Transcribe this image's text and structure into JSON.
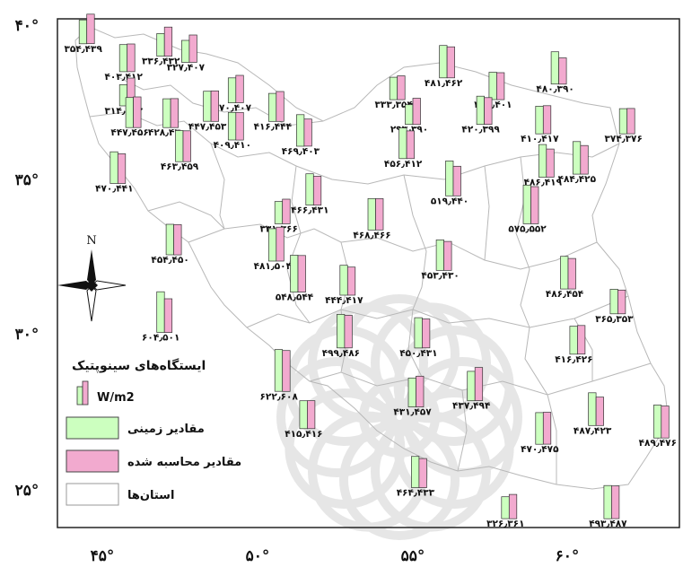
{
  "map": {
    "axes": {
      "x_ticks": [
        "۴۵°",
        "۵۰°",
        "۵۵°",
        "۶۰°"
      ],
      "y_ticks": [
        "۴۰°",
        "۳۵°",
        "۳۰°",
        "۲۵°"
      ]
    },
    "north_label": "N",
    "legend": {
      "title": "ایستگاه‌های سینوپتیک",
      "unit": "W/m2",
      "ground": "مقادیر زمینی",
      "computed": "مقادیر محاسبه شده",
      "provinces": "استان‌ها"
    },
    "colors": {
      "ground_bar": "#ccffbf",
      "computed_bar": "#f2aacf",
      "province_border": "#b8b8b8",
      "watermark": "#cfcfcf"
    },
    "stations": [
      {
        "lon": 44.5,
        "lat": 39.4,
        "label": "۳۵۴٫۴۳۹",
        "ground": 354,
        "computed": 439
      },
      {
        "lon": 45.8,
        "lat": 38.5,
        "label": "۴۰۳٫۴۱۲",
        "ground": 403,
        "computed": 412
      },
      {
        "lon": 47.0,
        "lat": 39.0,
        "label": "۳۳۶٫۴۳۲",
        "ground": 336,
        "computed": 432
      },
      {
        "lon": 47.8,
        "lat": 38.8,
        "label": "۳۲۷٫۴۰۷",
        "ground": 327,
        "computed": 407
      },
      {
        "lon": 45.8,
        "lat": 37.4,
        "label": "۳۱۴٫۴۱۳",
        "ground": 314,
        "computed": 413
      },
      {
        "lon": 49.3,
        "lat": 37.5,
        "label": "۳۷۰٫۴۰۷",
        "ground": 370,
        "computed": 407
      },
      {
        "lon": 47.2,
        "lat": 36.7,
        "label": "۴۲۸٫۴۳۰",
        "ground": 428,
        "computed": 430
      },
      {
        "lon": 48.5,
        "lat": 36.9,
        "label": "۴۴۷٫۴۵۳",
        "ground": 447,
        "computed": 453
      },
      {
        "lon": 46.0,
        "lat": 36.7,
        "label": "۴۴۷٫۴۵۶",
        "ground": 447,
        "computed": 456
      },
      {
        "lon": 49.3,
        "lat": 36.3,
        "label": "۴۰۹٫۴۱۰",
        "ground": 409,
        "computed": 410
      },
      {
        "lon": 50.6,
        "lat": 36.9,
        "label": "۴۱۶٫۴۴۴",
        "ground": 416,
        "computed": 444
      },
      {
        "lon": 47.6,
        "lat": 35.6,
        "label": "۴۶۳٫۴۵۹",
        "ground": 463,
        "computed": 459
      },
      {
        "lon": 45.5,
        "lat": 34.9,
        "label": "۴۷۰٫۴۴۱",
        "ground": 470,
        "computed": 441
      },
      {
        "lon": 51.5,
        "lat": 36.1,
        "label": "۴۶۹٫۴۰۳",
        "ground": 469,
        "computed": 403
      },
      {
        "lon": 54.5,
        "lat": 37.6,
        "label": "۳۳۳٫۳۵۴",
        "ground": 333,
        "computed": 354
      },
      {
        "lon": 56.1,
        "lat": 38.3,
        "label": "۴۸۱٫۴۶۲",
        "ground": 481,
        "computed": 462
      },
      {
        "lon": 57.7,
        "lat": 37.6,
        "label": "۴۰۷٫۴۰۱",
        "ground": 407,
        "computed": 401
      },
      {
        "lon": 59.7,
        "lat": 38.1,
        "label": "۴۸۰٫۳۹۰",
        "ground": 480,
        "computed": 390
      },
      {
        "lon": 55.0,
        "lat": 36.8,
        "label": "۲۹۳٫۳۹۰",
        "ground": 293,
        "computed": 390
      },
      {
        "lon": 57.3,
        "lat": 36.8,
        "label": "۴۲۰٫۳۹۹",
        "ground": 420,
        "computed": 399
      },
      {
        "lon": 59.2,
        "lat": 36.5,
        "label": "۴۱۰٫۴۱۷",
        "ground": 410,
        "computed": 417
      },
      {
        "lon": 61.9,
        "lat": 36.5,
        "label": "۳۷۴٫۳۷۶",
        "ground": 374,
        "computed": 376
      },
      {
        "lon": 54.8,
        "lat": 35.7,
        "label": "۴۵۶٫۴۱۲",
        "ground": 456,
        "computed": 412
      },
      {
        "lon": 59.3,
        "lat": 35.1,
        "label": "۴۸۶٫۴۱۹",
        "ground": 486,
        "computed": 419
      },
      {
        "lon": 60.4,
        "lat": 35.2,
        "label": "۴۸۴٫۴۲۵",
        "ground": 484,
        "computed": 425
      },
      {
        "lon": 56.3,
        "lat": 34.5,
        "label": "۵۱۹٫۴۴۰",
        "ground": 519,
        "computed": 440
      },
      {
        "lon": 51.8,
        "lat": 34.2,
        "label": "۴۶۶٫۴۳۱",
        "ground": 466,
        "computed": 431
      },
      {
        "lon": 53.8,
        "lat": 33.4,
        "label": "۴۶۸٫۴۶۶",
        "ground": 468,
        "computed": 466
      },
      {
        "lon": 50.8,
        "lat": 33.6,
        "label": "۳۳۱٫۳۶۶",
        "ground": 331,
        "computed": 366
      },
      {
        "lon": 58.8,
        "lat": 33.6,
        "label": "۵۷۵٫۵۵۲",
        "ground": 575,
        "computed": 552
      },
      {
        "lon": 47.3,
        "lat": 32.6,
        "label": "۴۵۴٫۴۵۰",
        "ground": 454,
        "computed": 450
      },
      {
        "lon": 50.6,
        "lat": 32.4,
        "label": "۴۸۱٫۵۰۴",
        "ground": 481,
        "computed": 504
      },
      {
        "lon": 51.3,
        "lat": 31.4,
        "label": "۵۴۸٫۵۴۴",
        "ground": 548,
        "computed": 544
      },
      {
        "lon": 52.9,
        "lat": 31.3,
        "label": "۴۴۴٫۴۱۷",
        "ground": 444,
        "computed": 417
      },
      {
        "lon": 56.0,
        "lat": 32.1,
        "label": "۴۵۳٫۴۳۰",
        "ground": 453,
        "computed": 430
      },
      {
        "lon": 60.0,
        "lat": 31.5,
        "label": "۴۸۶٫۴۵۴",
        "ground": 486,
        "computed": 454
      },
      {
        "lon": 61.6,
        "lat": 30.7,
        "label": "۳۶۵٫۳۵۳",
        "ground": 365,
        "computed": 353
      },
      {
        "lon": 47.0,
        "lat": 30.1,
        "label": "۶۰۴٫۵۰۱",
        "ground": 604,
        "computed": 501
      },
      {
        "lon": 52.8,
        "lat": 29.6,
        "label": "۴۹۹٫۴۸۶",
        "ground": 499,
        "computed": 486
      },
      {
        "lon": 55.3,
        "lat": 29.6,
        "label": "۴۵۰٫۴۳۱",
        "ground": 450,
        "computed": 431
      },
      {
        "lon": 60.3,
        "lat": 29.4,
        "label": "۴۱۶٫۴۲۶",
        "ground": 416,
        "computed": 426
      },
      {
        "lon": 50.8,
        "lat": 28.2,
        "label": "۶۲۲٫۶۰۸",
        "ground": 622,
        "computed": 608
      },
      {
        "lon": 55.1,
        "lat": 27.7,
        "label": "۴۳۱٫۴۵۷",
        "ground": 431,
        "computed": 457
      },
      {
        "lon": 57.0,
        "lat": 27.9,
        "label": "۴۳۷٫۴۹۴",
        "ground": 437,
        "computed": 494
      },
      {
        "lon": 51.6,
        "lat": 27.0,
        "label": "۴۱۵٫۴۱۶",
        "ground": 415,
        "computed": 416
      },
      {
        "lon": 60.9,
        "lat": 27.1,
        "label": "۴۸۷٫۴۲۳",
        "ground": 487,
        "computed": 423
      },
      {
        "lon": 63.0,
        "lat": 26.7,
        "label": "۴۸۹٫۴۷۶",
        "ground": 489,
        "computed": 476
      },
      {
        "lon": 59.2,
        "lat": 26.5,
        "label": "۴۷۰٫۴۷۵",
        "ground": 470,
        "computed": 475
      },
      {
        "lon": 55.2,
        "lat": 25.1,
        "label": "۴۶۴٫۴۳۳",
        "ground": 464,
        "computed": 433
      },
      {
        "lon": 58.1,
        "lat": 24.1,
        "label": "۳۲۶٫۳۶۱",
        "ground": 326,
        "computed": 361
      },
      {
        "lon": 61.4,
        "lat": 24.1,
        "label": "۴۹۳٫۴۸۷",
        "ground": 493,
        "computed": 487
      }
    ]
  }
}
